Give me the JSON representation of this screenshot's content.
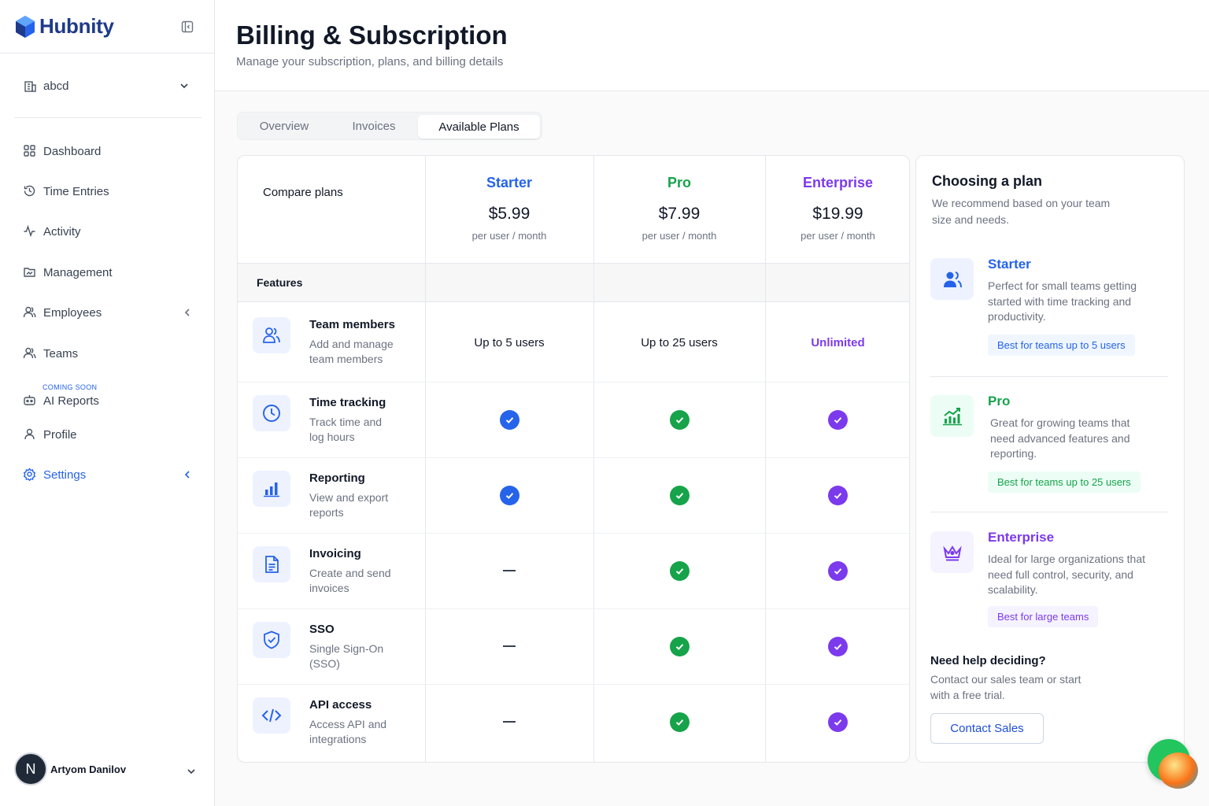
{
  "brand": {
    "name": "Hubnity"
  },
  "sidebar": {
    "org": "abcd",
    "items": [
      {
        "label": "Dashboard"
      },
      {
        "label": "Time Entries"
      },
      {
        "label": "Activity"
      },
      {
        "label": "Management"
      },
      {
        "label": "Employees"
      },
      {
        "label": "Teams"
      },
      {
        "label": "AI Reports",
        "badge": "COMING SOON"
      },
      {
        "label": "Profile"
      },
      {
        "label": "Settings"
      }
    ],
    "user": {
      "initial": "N",
      "name": "Artyom Danilov"
    }
  },
  "header": {
    "title": "Billing & Subscription",
    "subtitle": "Manage your subscription, plans, and billing details"
  },
  "tabs": [
    {
      "label": "Overview"
    },
    {
      "label": "Invoices"
    },
    {
      "label": "Available Plans"
    }
  ],
  "colors": {
    "starter": "#2563eb",
    "pro": "#16a34a",
    "enterprise": "#7c3aed"
  },
  "table": {
    "compare_label": "Compare plans",
    "features_label": "Features",
    "plans": [
      {
        "name": "Starter",
        "price": "$5.99",
        "per": "per user / month"
      },
      {
        "name": "Pro",
        "price": "$7.99",
        "per": "per user / month"
      },
      {
        "name": "Enterprise",
        "price": "$19.99",
        "per": "per user / month"
      }
    ],
    "features": [
      {
        "title": "Team members",
        "desc": "Add and manage team members",
        "icon": "users-icon",
        "values": [
          "Up to 5 users",
          "Up to 25 users",
          "Unlimited"
        ]
      },
      {
        "title": "Time tracking",
        "desc": "Track time and log hours",
        "icon": "clock-icon",
        "values": [
          "check",
          "check",
          "check"
        ]
      },
      {
        "title": "Reporting",
        "desc": "View and export reports",
        "icon": "bar-chart-icon",
        "values": [
          "check",
          "check",
          "check"
        ]
      },
      {
        "title": "Invoicing",
        "desc": "Create and send invoices",
        "icon": "document-icon",
        "values": [
          "dash",
          "check",
          "check"
        ]
      },
      {
        "title": "SSO",
        "desc": "Single Sign-On (SSO)",
        "icon": "shield-icon",
        "values": [
          "dash",
          "check",
          "check"
        ]
      },
      {
        "title": "API access",
        "desc": "Access API and integrations",
        "icon": "code-icon",
        "values": [
          "dash",
          "check",
          "check"
        ]
      }
    ]
  },
  "side": {
    "title": "Choosing a plan",
    "subtitle": "We recommend based on your team size and needs.",
    "recs": [
      {
        "name": "Starter",
        "desc": "Perfect for small teams getting started with time tracking and productivity.",
        "badge": "Best for teams up to 5 users"
      },
      {
        "name": "Pro",
        "desc": "Great for growing teams that need advanced features and reporting.",
        "badge": "Best for teams up to 25 users"
      },
      {
        "name": "Enterprise",
        "desc": "Ideal for large organizations that need full control, security, and scalability.",
        "badge": "Best for large teams"
      }
    ],
    "help_title": "Need help deciding?",
    "help_sub": "Contact our sales team or start with a free trial.",
    "contact": "Contact Sales"
  }
}
